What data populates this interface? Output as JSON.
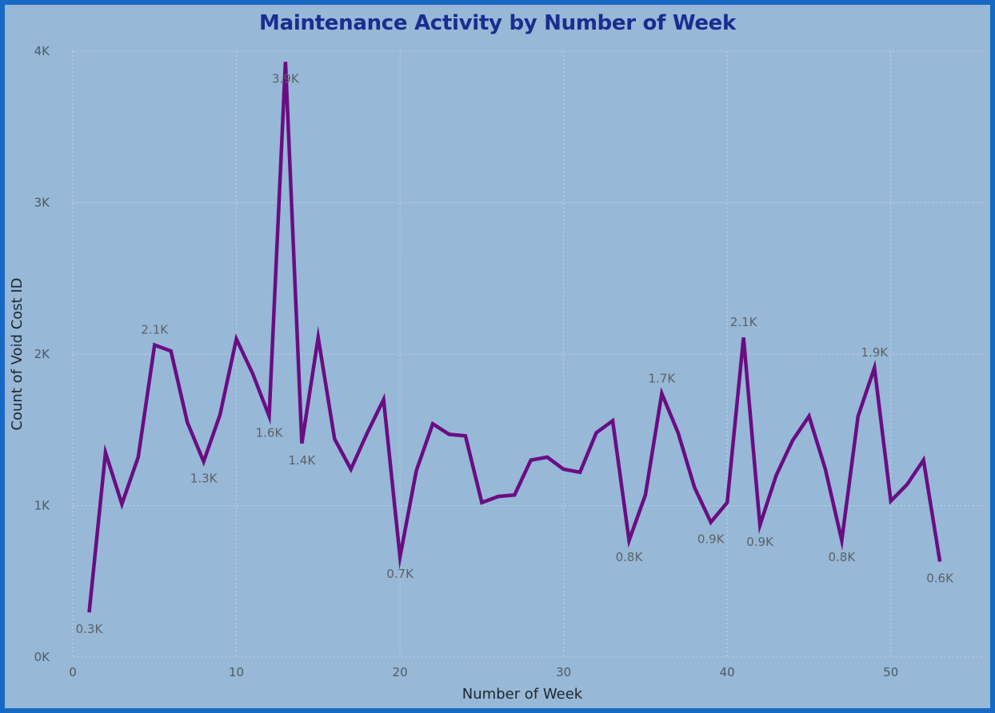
{
  "chart_data": {
    "type": "line",
    "title": "Maintenance Activity by Number of Week",
    "xlabel": "Number of Week",
    "ylabel": "Count of Void Cost ID",
    "xlim": [
      0,
      55
    ],
    "ylim": [
      0,
      4000
    ],
    "x_ticks": [
      0,
      10,
      20,
      30,
      40,
      50
    ],
    "x_tick_labels": [
      "0",
      "10",
      "20",
      "30",
      "40",
      "50"
    ],
    "y_ticks": [
      0,
      1000,
      2000,
      3000,
      4000
    ],
    "y_tick_labels": [
      "0K",
      "1K",
      "2K",
      "3K",
      "4K"
    ],
    "grid": true,
    "legend": "none",
    "line_color": "#6a0d83",
    "background_color": "#97b8d7",
    "border_color": "#1769c4",
    "title_color": "#1a2d8f",
    "x": [
      1,
      2,
      3,
      4,
      5,
      6,
      7,
      8,
      9,
      10,
      11,
      12,
      13,
      14,
      15,
      16,
      17,
      18,
      19,
      20,
      21,
      22,
      23,
      24,
      25,
      26,
      27,
      28,
      29,
      30,
      31,
      32,
      33,
      34,
      35,
      36,
      37,
      38,
      39,
      40,
      41,
      42,
      43,
      44,
      45,
      46,
      47,
      48,
      49,
      50,
      51,
      52,
      53
    ],
    "values": [
      295,
      1350,
      1010,
      1320,
      2060,
      2020,
      1550,
      1290,
      1600,
      2100,
      1870,
      1590,
      3930,
      1410,
      2110,
      1440,
      1240,
      1480,
      1700,
      660,
      1230,
      1540,
      1470,
      1460,
      1020,
      1060,
      1070,
      1300,
      1320,
      1240,
      1220,
      1480,
      1560,
      770,
      1070,
      1740,
      1480,
      1120,
      890,
      1020,
      2110,
      870,
      1200,
      1430,
      1590,
      1240,
      770,
      1590,
      1910,
      1030,
      1140,
      1300,
      630
    ],
    "data_labels": [
      {
        "x": 1,
        "text": "0.3K",
        "pos": "below"
      },
      {
        "x": 5,
        "text": "2.1K",
        "pos": "above"
      },
      {
        "x": 8,
        "text": "1.3K",
        "pos": "below"
      },
      {
        "x": 12,
        "text": "1.6K",
        "pos": "below"
      },
      {
        "x": 13,
        "text": "3.9K",
        "pos": "on"
      },
      {
        "x": 14,
        "text": "1.4K",
        "pos": "below"
      },
      {
        "x": 20,
        "text": "0.7K",
        "pos": "below"
      },
      {
        "x": 34,
        "text": "0.8K",
        "pos": "below"
      },
      {
        "x": 36,
        "text": "1.7K",
        "pos": "above"
      },
      {
        "x": 39,
        "text": "0.9K",
        "pos": "below"
      },
      {
        "x": 41,
        "text": "2.1K",
        "pos": "above"
      },
      {
        "x": 42,
        "text": "0.9K",
        "pos": "below"
      },
      {
        "x": 47,
        "text": "0.8K",
        "pos": "below"
      },
      {
        "x": 49,
        "text": "1.9K",
        "pos": "above"
      },
      {
        "x": 53,
        "text": "0.6K",
        "pos": "below"
      }
    ]
  }
}
